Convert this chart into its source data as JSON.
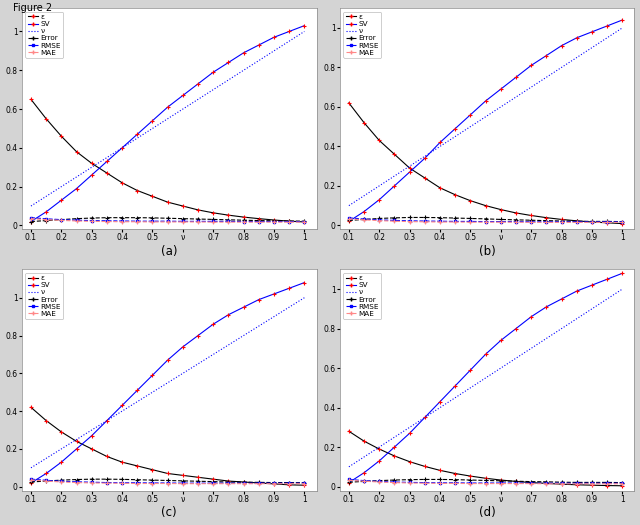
{
  "bg_color": "#d4d4d4",
  "panel_bg": "#ffffff",
  "title": "Figure 2",
  "nu_vals": [
    0.1,
    0.15,
    0.2,
    0.25,
    0.3,
    0.35,
    0.4,
    0.45,
    0.5,
    0.55,
    0.6,
    0.65,
    0.7,
    0.75,
    0.8,
    0.85,
    0.9,
    0.95,
    1.0
  ],
  "epsilon_a": [
    0.65,
    0.55,
    0.46,
    0.38,
    0.32,
    0.27,
    0.22,
    0.18,
    0.15,
    0.12,
    0.1,
    0.08,
    0.065,
    0.053,
    0.043,
    0.035,
    0.028,
    0.022,
    0.018
  ],
  "sv_a": [
    0.02,
    0.07,
    0.13,
    0.19,
    0.26,
    0.33,
    0.4,
    0.47,
    0.54,
    0.61,
    0.67,
    0.73,
    0.79,
    0.84,
    0.89,
    0.93,
    0.97,
    1.0,
    1.03
  ],
  "nu_line_a": [
    0.1,
    0.15,
    0.2,
    0.25,
    0.3,
    0.35,
    0.4,
    0.45,
    0.5,
    0.55,
    0.6,
    0.65,
    0.7,
    0.75,
    0.8,
    0.85,
    0.9,
    0.95,
    1.0
  ],
  "error_a": [
    0.02,
    0.025,
    0.03,
    0.035,
    0.038,
    0.04,
    0.04,
    0.04,
    0.039,
    0.037,
    0.035,
    0.033,
    0.031,
    0.029,
    0.027,
    0.025,
    0.024,
    0.023,
    0.022
  ],
  "rmse_a": [
    0.04,
    0.034,
    0.03,
    0.027,
    0.025,
    0.024,
    0.023,
    0.022,
    0.022,
    0.022,
    0.021,
    0.021,
    0.021,
    0.021,
    0.02,
    0.02,
    0.02,
    0.02,
    0.02
  ],
  "mae_a": [
    0.035,
    0.03,
    0.026,
    0.023,
    0.021,
    0.02,
    0.019,
    0.019,
    0.018,
    0.018,
    0.018,
    0.018,
    0.017,
    0.017,
    0.017,
    0.017,
    0.017,
    0.017,
    0.017
  ],
  "epsilon_b": [
    0.62,
    0.52,
    0.43,
    0.36,
    0.29,
    0.24,
    0.19,
    0.155,
    0.125,
    0.1,
    0.08,
    0.063,
    0.05,
    0.039,
    0.03,
    0.023,
    0.017,
    0.013,
    0.009
  ],
  "sv_b": [
    0.02,
    0.07,
    0.13,
    0.2,
    0.27,
    0.34,
    0.42,
    0.49,
    0.56,
    0.63,
    0.69,
    0.75,
    0.81,
    0.86,
    0.91,
    0.95,
    0.98,
    1.01,
    1.04
  ],
  "nu_line_b": [
    0.1,
    0.15,
    0.2,
    0.25,
    0.3,
    0.35,
    0.4,
    0.45,
    0.5,
    0.55,
    0.6,
    0.65,
    0.7,
    0.75,
    0.8,
    0.85,
    0.9,
    0.95,
    1.0
  ],
  "error_b": [
    0.025,
    0.03,
    0.035,
    0.038,
    0.04,
    0.04,
    0.039,
    0.037,
    0.035,
    0.033,
    0.03,
    0.028,
    0.026,
    0.024,
    0.022,
    0.021,
    0.02,
    0.02,
    0.019
  ],
  "rmse_b": [
    0.038,
    0.032,
    0.028,
    0.025,
    0.023,
    0.022,
    0.021,
    0.02,
    0.02,
    0.019,
    0.019,
    0.019,
    0.018,
    0.018,
    0.018,
    0.018,
    0.018,
    0.018,
    0.018
  ],
  "mae_b": [
    0.033,
    0.028,
    0.024,
    0.021,
    0.019,
    0.018,
    0.017,
    0.017,
    0.016,
    0.016,
    0.016,
    0.016,
    0.015,
    0.015,
    0.015,
    0.015,
    0.015,
    0.015,
    0.015
  ],
  "epsilon_c": [
    0.42,
    0.35,
    0.29,
    0.24,
    0.2,
    0.16,
    0.13,
    0.11,
    0.09,
    0.07,
    0.06,
    0.05,
    0.04,
    0.03,
    0.025,
    0.02,
    0.015,
    0.01,
    0.008
  ],
  "sv_c": [
    0.02,
    0.07,
    0.13,
    0.2,
    0.27,
    0.35,
    0.43,
    0.51,
    0.59,
    0.67,
    0.74,
    0.8,
    0.86,
    0.91,
    0.95,
    0.99,
    1.02,
    1.05,
    1.08
  ],
  "nu_line_c": [
    0.1,
    0.15,
    0.2,
    0.25,
    0.3,
    0.35,
    0.4,
    0.45,
    0.5,
    0.55,
    0.6,
    0.65,
    0.7,
    0.75,
    0.8,
    0.85,
    0.9,
    0.95,
    1.0
  ],
  "error_c": [
    0.025,
    0.03,
    0.035,
    0.038,
    0.04,
    0.04,
    0.039,
    0.037,
    0.035,
    0.033,
    0.031,
    0.029,
    0.027,
    0.025,
    0.024,
    0.023,
    0.022,
    0.022,
    0.021
  ],
  "rmse_c": [
    0.04,
    0.034,
    0.029,
    0.026,
    0.024,
    0.022,
    0.021,
    0.021,
    0.02,
    0.02,
    0.019,
    0.019,
    0.019,
    0.019,
    0.019,
    0.019,
    0.019,
    0.019,
    0.019
  ],
  "mae_c": [
    0.036,
    0.03,
    0.025,
    0.022,
    0.02,
    0.019,
    0.018,
    0.017,
    0.017,
    0.017,
    0.016,
    0.016,
    0.016,
    0.016,
    0.016,
    0.016,
    0.016,
    0.016,
    0.016
  ],
  "epsilon_d": [
    0.28,
    0.23,
    0.19,
    0.155,
    0.126,
    0.102,
    0.082,
    0.066,
    0.053,
    0.042,
    0.033,
    0.026,
    0.02,
    0.016,
    0.012,
    0.009,
    0.007,
    0.005,
    0.004
  ],
  "sv_d": [
    0.02,
    0.07,
    0.13,
    0.2,
    0.27,
    0.35,
    0.43,
    0.51,
    0.59,
    0.67,
    0.74,
    0.8,
    0.86,
    0.91,
    0.95,
    0.99,
    1.02,
    1.05,
    1.08
  ],
  "nu_line_d": [
    0.1,
    0.15,
    0.2,
    0.25,
    0.3,
    0.35,
    0.4,
    0.45,
    0.5,
    0.55,
    0.6,
    0.65,
    0.7,
    0.75,
    0.8,
    0.85,
    0.9,
    0.95,
    1.0
  ],
  "error_d": [
    0.022,
    0.026,
    0.03,
    0.033,
    0.035,
    0.036,
    0.036,
    0.035,
    0.033,
    0.031,
    0.029,
    0.027,
    0.025,
    0.024,
    0.022,
    0.021,
    0.021,
    0.021,
    0.02
  ],
  "rmse_d": [
    0.036,
    0.03,
    0.026,
    0.023,
    0.021,
    0.02,
    0.019,
    0.019,
    0.018,
    0.018,
    0.018,
    0.018,
    0.017,
    0.017,
    0.017,
    0.017,
    0.017,
    0.017,
    0.017
  ],
  "mae_d": [
    0.032,
    0.027,
    0.023,
    0.02,
    0.018,
    0.017,
    0.016,
    0.016,
    0.015,
    0.015,
    0.015,
    0.015,
    0.015,
    0.014,
    0.014,
    0.014,
    0.014,
    0.014,
    0.014
  ],
  "panel_labels": [
    "(a)",
    "(b)",
    "(c)",
    "(d)"
  ],
  "legend_labels": [
    "ε",
    "SV",
    "ν",
    "Error",
    "RMSE",
    "MAE"
  ],
  "xticks_a": [
    0.1,
    0.2,
    0.3,
    0.4,
    0.5,
    0.6,
    0.7,
    0.8,
    0.9,
    1.0
  ],
  "xlabels_a": [
    "0.1",
    "0.2",
    "0.3",
    "0.4",
    "0.5",
    "ν",
    "0.7",
    "0.8",
    "0.9",
    "1"
  ],
  "xticks_b": [
    0.1,
    0.2,
    0.3,
    0.4,
    0.5,
    0.6,
    0.7,
    0.8,
    0.9,
    1.0
  ],
  "xlabels_b": [
    "0.1",
    "0.2",
    "0.3",
    "0.4",
    "0.5",
    "ν",
    "0.7",
    "0.8",
    "0.9",
    "1"
  ],
  "xticks_c": [
    0.1,
    0.2,
    0.3,
    0.4,
    0.5,
    0.6,
    0.7,
    0.8,
    0.9,
    1.0
  ],
  "xlabels_c": [
    "0.1",
    "0.2",
    "0.3",
    "0.4",
    "0.5",
    "ν",
    "0.7",
    "0.8",
    "0.9",
    "1"
  ],
  "xticks_d": [
    0.1,
    0.2,
    0.3,
    0.4,
    0.5,
    0.6,
    0.7,
    0.8,
    0.9,
    1.0
  ],
  "xlabels_d": [
    "0.1",
    "0.2",
    "0.3",
    "0.4",
    "0.5",
    "ν",
    "0.7",
    "0.8",
    "0.9",
    "1"
  ],
  "yticks_a": [
    0.0,
    0.2,
    0.4,
    0.6,
    0.8,
    1.0
  ],
  "ylabels_a": [
    "0",
    "0.2",
    "0.4",
    "0.6",
    "0.8",
    "1"
  ],
  "ylim_a": [
    -0.02,
    1.12
  ],
  "yticks_b": [
    0.0,
    0.2,
    0.4,
    0.6,
    0.8,
    1.0
  ],
  "ylabels_b": [
    "0",
    "0.2",
    "0.4",
    "0.6",
    "0.8",
    "1"
  ],
  "ylim_b": [
    -0.02,
    1.1
  ],
  "yticks_c": [
    0.0,
    0.2,
    0.4,
    0.6,
    0.8,
    1.0
  ],
  "ylabels_c": [
    "0",
    "0.2",
    "0.4",
    "0.6",
    "0.8",
    "1"
  ],
  "ylim_c": [
    -0.02,
    1.15
  ],
  "yticks_d": [
    0.0,
    0.2,
    0.4,
    0.6,
    0.8,
    1.0
  ],
  "ylabels_d": [
    "0",
    "0.2",
    "0.4",
    "0.6",
    "0.8",
    "1"
  ],
  "ylim_d": [
    -0.02,
    1.1
  ]
}
